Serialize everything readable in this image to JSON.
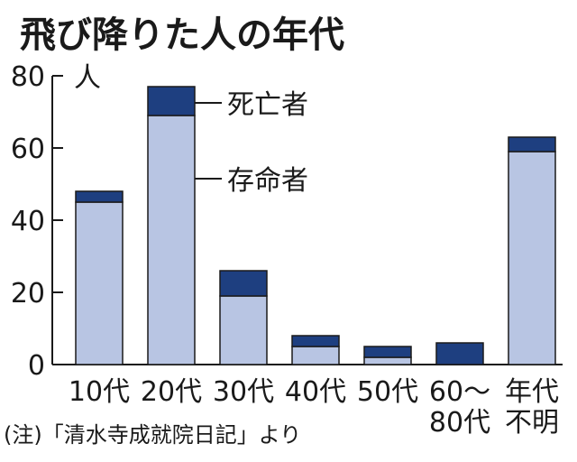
{
  "chart_data": {
    "type": "bar",
    "stacked": true,
    "title": "飛び降りた人の年代",
    "ylabel": "人",
    "xlabel": "",
    "ylim": [
      0,
      80
    ],
    "yticks": [
      0,
      20,
      40,
      60,
      80
    ],
    "categories": [
      {
        "line1": "10代",
        "line2": ""
      },
      {
        "line1": "20代",
        "line2": ""
      },
      {
        "line1": "30代",
        "line2": ""
      },
      {
        "line1": "40代",
        "line2": ""
      },
      {
        "line1": "50代",
        "line2": ""
      },
      {
        "line1": "60～",
        "line2": "80代"
      },
      {
        "line1": "年代",
        "line2": "不明"
      }
    ],
    "series": [
      {
        "name": "存命者",
        "values": [
          45,
          69,
          19,
          5,
          2,
          0,
          59
        ],
        "color": "#b8c5e3"
      },
      {
        "name": "死亡者",
        "values": [
          3,
          8,
          7,
          3,
          3,
          6,
          4
        ],
        "color": "#1e3f80"
      }
    ],
    "grid": false,
    "legend": "inline-labels",
    "note": "(注)「清水寺成就院日記」より"
  },
  "colors": {
    "survivor": "#b8c5e3",
    "dead": "#1e3f80",
    "edge": "#1a1a1a"
  }
}
